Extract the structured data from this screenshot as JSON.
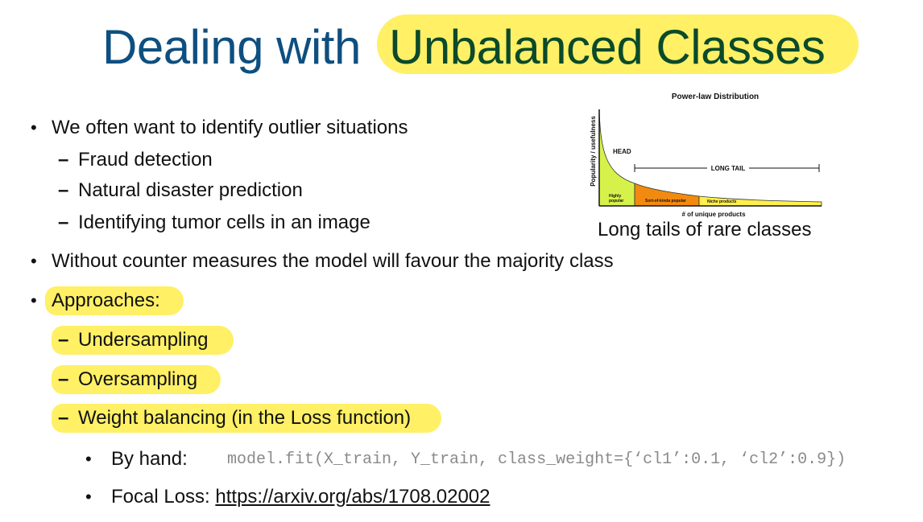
{
  "slide": {
    "title_plain": "Dealing with",
    "title_highlight": "Unbalanced Classes",
    "bullets": {
      "b1": "We often want to identify outlier situations",
      "b1_sub1": "Fraud detection",
      "b1_sub2": "Natural disaster prediction",
      "b1_sub3": "Identifying tumor cells in an image",
      "b2": "Without counter measures the model will favour the majority class",
      "b3": "Approaches:",
      "b3_sub1": "Undersampling",
      "b3_sub2": "Oversampling",
      "b3_sub3": "Weight balancing (in the Loss function)",
      "byhand_label": "By hand:",
      "byhand_code": "model.fit(X_train, Y_train, class_weight={‘cl1’:0.1, ‘cl2’:0.9})",
      "focal_label": "Focal Loss: ",
      "focal_link": "https://arxiv.org/abs/1708.02002"
    },
    "bullet_symbol": "•",
    "dash_symbol": "–",
    "highlight_color": "#fff066",
    "title_color": "#0e4f80"
  },
  "figure": {
    "title": "Power-law Distribution",
    "ylabel": "Popularity / usefulness",
    "xlabel": "# of unique products",
    "head_label": "HEAD",
    "long_tail_label": "LONG TAIL",
    "region1_label_line1": "Highly",
    "region1_label_line2": "popular",
    "region2_label": "Sort-of-kinda popular",
    "region3_label": "Niche products",
    "colors": {
      "head": "#d6f24a",
      "mid": "#f28a10",
      "tail": "#fff04a"
    },
    "caption": "Long tails of rare classes"
  }
}
